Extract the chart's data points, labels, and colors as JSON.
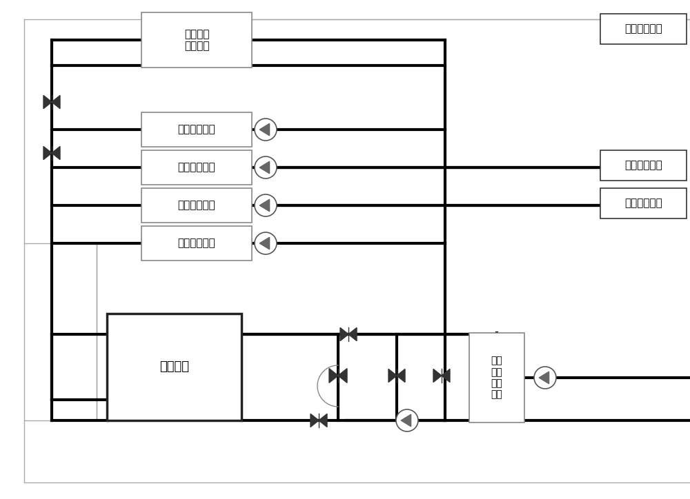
{
  "bg_color": "#ffffff",
  "labels": {
    "second_plate": "第二板式\n换热单元",
    "second_cond": "第二冷凝单元",
    "first_cond": "第一冷凝单元",
    "first_evap": "第一蒸发单元",
    "second_evap": "第二蒸发单元",
    "energy_storage": "蓄能单元",
    "first_plate": "第一\n板式\n换热\n单元",
    "second_work": "第二工作单元",
    "first_work": "第一工作单元",
    "third_work": "第三工作单元"
  },
  "lw_thick": 3.0,
  "lw_thin": 1.0,
  "font_size": 11
}
